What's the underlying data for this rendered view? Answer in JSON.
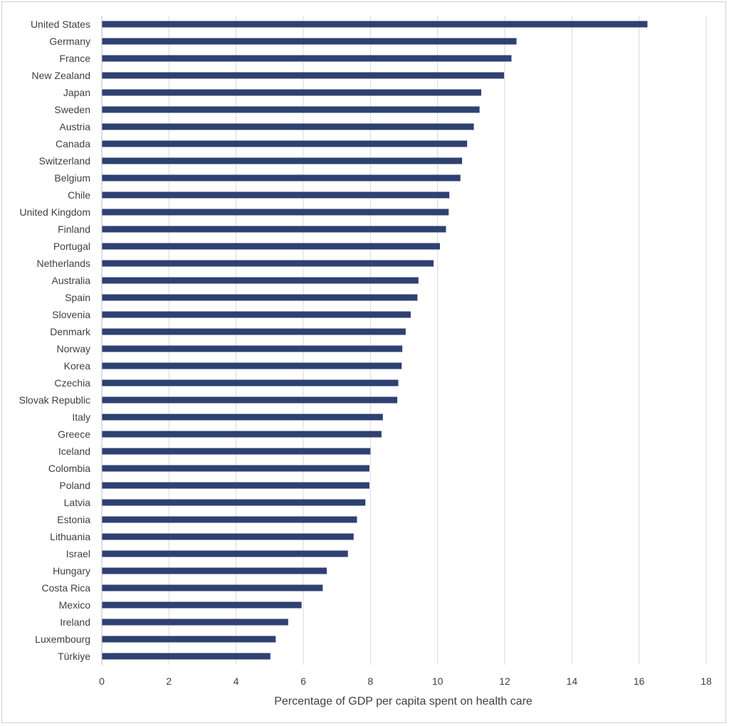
{
  "chart_data": {
    "type": "bar",
    "orientation": "horizontal",
    "title": "",
    "xlabel": "Percentage of GDP per capita spent on health care",
    "ylabel": "",
    "xlim": [
      0,
      18
    ],
    "xticks": [
      0,
      2,
      4,
      6,
      8,
      10,
      12,
      14,
      16,
      18
    ],
    "grid": "vertical",
    "bar_color": "#2f4172",
    "categories": [
      "United States",
      "Germany",
      "France",
      "New Zealand",
      "Japan",
      "Sweden",
      "Austria",
      "Canada",
      "Switzerland",
      "Belgium",
      "Chile",
      "United Kingdom",
      "Finland",
      "Portugal",
      "Netherlands",
      "Australia",
      "Spain",
      "Slovenia",
      "Denmark",
      "Norway",
      "Korea",
      "Czechia",
      "Slovak Republic",
      "Italy",
      "Greece",
      "Iceland",
      "Colombia",
      "Poland",
      "Latvia",
      "Estonia",
      "Lithuania",
      "Israel",
      "Hungary",
      "Costa Rica",
      "Mexico",
      "Ireland",
      "Luxembourg",
      "Türkiye"
    ],
    "values": [
      16.25,
      12.35,
      12.2,
      11.98,
      11.3,
      11.25,
      11.08,
      10.88,
      10.73,
      10.68,
      10.35,
      10.33,
      10.25,
      10.07,
      9.88,
      9.43,
      9.4,
      9.2,
      9.05,
      8.95,
      8.93,
      8.83,
      8.8,
      8.37,
      8.33,
      8.0,
      7.97,
      7.97,
      7.85,
      7.6,
      7.5,
      7.33,
      6.7,
      6.58,
      5.95,
      5.55,
      5.18,
      5.02
    ]
  }
}
